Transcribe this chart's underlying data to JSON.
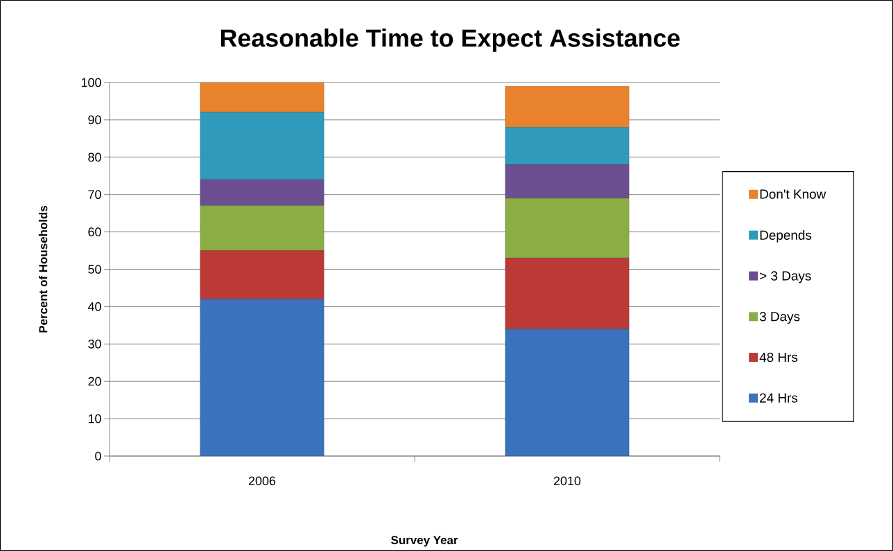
{
  "chart_data": {
    "type": "bar",
    "title": "Reasonable Time to Expect Assistance",
    "xlabel": "Survey Year",
    "ylabel": "Percent of Households",
    "categories": [
      "2006",
      "2010"
    ],
    "stacked": true,
    "series": [
      {
        "name": "24 Hrs",
        "color": "#3a72bb",
        "values": [
          42,
          34
        ]
      },
      {
        "name": "48 Hrs",
        "color": "#bb3a36",
        "values": [
          13,
          19
        ]
      },
      {
        "name": "3 Days",
        "color": "#8aae45",
        "values": [
          12,
          16
        ]
      },
      {
        "name": "> 3 Days",
        "color": "#6b4f91",
        "values": [
          7,
          9
        ]
      },
      {
        "name": "Depends",
        "color": "#2f9ab9",
        "values": [
          18,
          10
        ]
      },
      {
        "name": "Don't Know",
        "color": "#e8822c",
        "values": [
          8,
          11
        ]
      }
    ],
    "ylim": [
      0,
      100
    ],
    "yticks": [
      0,
      10,
      20,
      30,
      40,
      50,
      60,
      70,
      80,
      90,
      100
    ],
    "grid": "y",
    "legend": "right"
  }
}
